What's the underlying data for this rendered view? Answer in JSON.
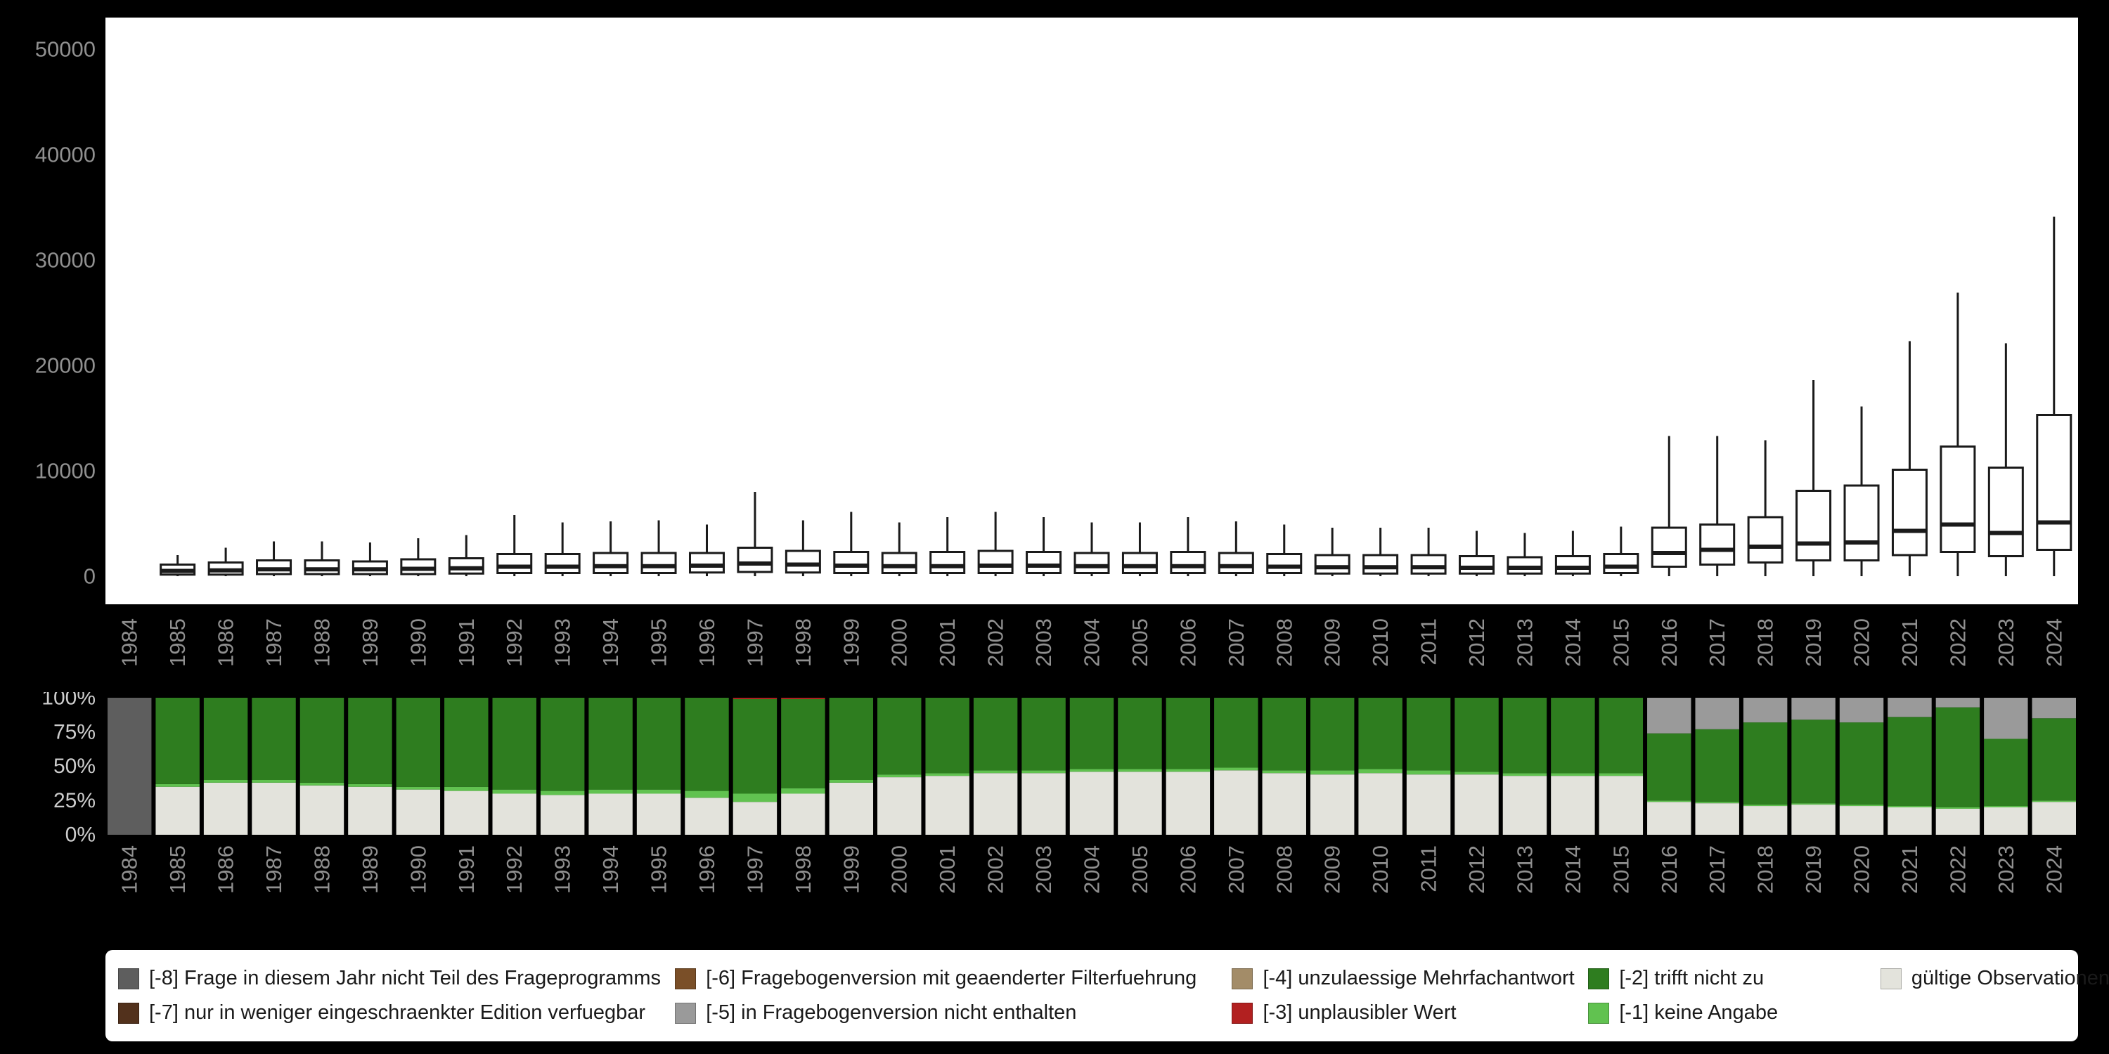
{
  "colors": {
    "background": "#000000",
    "plot_background": "#ffffff",
    "box_stroke": "#1a1a1a",
    "axis_text": "#909090",
    "percent_axis_text": "#cccccc",
    "legend_background": "#ffffff",
    "legend_text": "#1a1a1a",
    "categories": {
      "minus8": "#5e5e5e",
      "minus7": "#52311c",
      "minus6": "#7a4f28",
      "minus5": "#9a9a9a",
      "minus4": "#a38c68",
      "minus3": "#b22020",
      "minus2": "#2e7d1f",
      "minus1": "#61c250",
      "valid": "#e3e3dc"
    }
  },
  "chart_data": [
    {
      "type": "boxplot",
      "title": "",
      "xlabel": "",
      "ylabel": "",
      "ylim": [
        0,
        50000
      ],
      "grid": false,
      "yticks": [
        0,
        10000,
        20000,
        30000,
        40000,
        50000
      ],
      "categories": [
        "1984",
        "1985",
        "1986",
        "1987",
        "1988",
        "1989",
        "1990",
        "1991",
        "1992",
        "1993",
        "1994",
        "1995",
        "1996",
        "1997",
        "1998",
        "1999",
        "2000",
        "2001",
        "2002",
        "2003",
        "2004",
        "2005",
        "2006",
        "2007",
        "2008",
        "2009",
        "2010",
        "2011",
        "2012",
        "2013",
        "2014",
        "2015",
        "2016",
        "2017",
        "2018",
        "2019",
        "2020",
        "2021",
        "2022",
        "2023",
        "2024"
      ],
      "note": "no box drawn for 1984",
      "boxes": {
        "columns": [
          "year",
          "whisker_low",
          "q1",
          "median",
          "q3",
          "whisker_high"
        ],
        "rows": [
          [
            1985,
            0,
            150,
            500,
            1100,
            2000
          ],
          [
            1986,
            0,
            150,
            550,
            1300,
            2700
          ],
          [
            1987,
            0,
            200,
            650,
            1500,
            3300
          ],
          [
            1988,
            0,
            200,
            650,
            1500,
            3300
          ],
          [
            1989,
            0,
            200,
            650,
            1400,
            3200
          ],
          [
            1990,
            0,
            200,
            700,
            1600,
            3600
          ],
          [
            1991,
            0,
            250,
            750,
            1700,
            3900
          ],
          [
            1992,
            0,
            300,
            900,
            2100,
            5800
          ],
          [
            1993,
            0,
            300,
            900,
            2100,
            5100
          ],
          [
            1994,
            0,
            300,
            950,
            2200,
            5200
          ],
          [
            1995,
            0,
            300,
            950,
            2200,
            5300
          ],
          [
            1996,
            0,
            350,
            1000,
            2200,
            4900
          ],
          [
            1997,
            0,
            400,
            1200,
            2700,
            8000
          ],
          [
            1998,
            0,
            350,
            1100,
            2400,
            5300
          ],
          [
            1999,
            0,
            300,
            1000,
            2300,
            6100
          ],
          [
            2000,
            0,
            300,
            950,
            2200,
            5100
          ],
          [
            2001,
            0,
            300,
            950,
            2300,
            5600
          ],
          [
            2002,
            0,
            300,
            1000,
            2400,
            6100
          ],
          [
            2003,
            0,
            300,
            1000,
            2300,
            5600
          ],
          [
            2004,
            0,
            300,
            950,
            2200,
            5100
          ],
          [
            2005,
            0,
            300,
            950,
            2200,
            5100
          ],
          [
            2006,
            0,
            300,
            950,
            2300,
            5600
          ],
          [
            2007,
            0,
            300,
            950,
            2200,
            5200
          ],
          [
            2008,
            0,
            300,
            900,
            2100,
            4900
          ],
          [
            2009,
            0,
            250,
            850,
            2000,
            4600
          ],
          [
            2010,
            0,
            250,
            850,
            2000,
            4600
          ],
          [
            2011,
            0,
            250,
            850,
            2000,
            4600
          ],
          [
            2012,
            0,
            250,
            800,
            1900,
            4300
          ],
          [
            2013,
            0,
            250,
            800,
            1800,
            4100
          ],
          [
            2014,
            0,
            250,
            800,
            1900,
            4300
          ],
          [
            2015,
            0,
            300,
            900,
            2100,
            4700
          ],
          [
            2016,
            0,
            900,
            2200,
            4600,
            13300
          ],
          [
            2017,
            0,
            1100,
            2500,
            4900,
            13300
          ],
          [
            2018,
            0,
            1300,
            2800,
            5600,
            12900
          ],
          [
            2019,
            0,
            1500,
            3100,
            8100,
            18600
          ],
          [
            2020,
            0,
            1500,
            3200,
            8600,
            16100
          ],
          [
            2021,
            0,
            2000,
            4300,
            10100,
            22300
          ],
          [
            2022,
            0,
            2300,
            4900,
            12300,
            26900
          ],
          [
            2023,
            0,
            1900,
            4100,
            10300,
            22100
          ],
          [
            2024,
            0,
            2500,
            5100,
            15300,
            34100
          ]
        ]
      }
    },
    {
      "type": "bar",
      "stacked_percent": true,
      "title": "",
      "xlabel": "",
      "ylabel": "",
      "ylim": [
        0,
        100
      ],
      "yticks": [
        100,
        75,
        50,
        25,
        0
      ],
      "ytick_labels": [
        "100%",
        "75%",
        "50%",
        "25%",
        "0%"
      ],
      "categories": [
        "1984",
        "1985",
        "1986",
        "1987",
        "1988",
        "1989",
        "1990",
        "1991",
        "1992",
        "1993",
        "1994",
        "1995",
        "1996",
        "1997",
        "1998",
        "1999",
        "2000",
        "2001",
        "2002",
        "2003",
        "2004",
        "2005",
        "2006",
        "2007",
        "2008",
        "2009",
        "2010",
        "2011",
        "2012",
        "2013",
        "2014",
        "2015",
        "2016",
        "2017",
        "2018",
        "2019",
        "2020",
        "2021",
        "2022",
        "2023",
        "2024"
      ],
      "series": [
        {
          "key": "valid",
          "name": "gültige Observationen",
          "color": "#e3e3dc",
          "values": [
            0,
            35,
            38,
            38,
            36,
            35,
            33,
            32,
            30,
            29,
            30,
            30,
            27,
            24,
            30,
            38,
            42,
            43,
            45,
            45,
            46,
            46,
            46,
            47,
            45,
            44,
            45,
            44,
            44,
            43,
            43,
            43,
            24,
            23,
            21,
            22,
            21,
            20,
            19,
            20,
            24
          ]
        },
        {
          "key": "minus1",
          "name": "[-1] keine Angabe",
          "color": "#61c250",
          "values": [
            0,
            2,
            2,
            2,
            2,
            2,
            2,
            3,
            3,
            3,
            3,
            3,
            5,
            6,
            4,
            2,
            2,
            2,
            2,
            2,
            2,
            2,
            2,
            2,
            2,
            3,
            3,
            3,
            2,
            2,
            2,
            2,
            1,
            1,
            1,
            1,
            1,
            1,
            1,
            1,
            1
          ]
        },
        {
          "key": "minus2",
          "name": "[-2] trifft nicht zu",
          "color": "#2e7d1f",
          "values": [
            0,
            63,
            60,
            60,
            62,
            63,
            65,
            65,
            67,
            68,
            67,
            67,
            68,
            69,
            65,
            60,
            56,
            55,
            53,
            53,
            52,
            52,
            52,
            51,
            53,
            53,
            52,
            53,
            54,
            55,
            55,
            55,
            49,
            53,
            60,
            61,
            60,
            65,
            73,
            49,
            60
          ]
        },
        {
          "key": "minus3",
          "name": "[-3] unplausibler Wert",
          "color": "#b22020",
          "values": [
            0,
            0,
            0,
            0,
            0,
            0,
            0,
            0,
            0,
            0,
            0,
            0,
            0,
            1,
            1,
            0,
            0,
            0,
            0,
            0,
            0,
            0,
            0,
            0,
            0,
            0,
            0,
            0,
            0,
            0,
            0,
            0,
            0,
            0,
            0,
            0,
            0,
            0,
            0,
            0,
            0
          ]
        },
        {
          "key": "minus5",
          "name": "[-5] in Fragebogenversion nicht enthalten",
          "color": "#9a9a9a",
          "values": [
            0,
            0,
            0,
            0,
            0,
            0,
            0,
            0,
            0,
            0,
            0,
            0,
            0,
            0,
            0,
            0,
            0,
            0,
            0,
            0,
            0,
            0,
            0,
            0,
            0,
            0,
            0,
            0,
            0,
            0,
            0,
            0,
            26,
            23,
            18,
            16,
            18,
            14,
            7,
            30,
            15
          ]
        },
        {
          "key": "minus8",
          "name": "[-8] Frage in diesem Jahr nicht Teil des Frageprogramms",
          "color": "#5e5e5e",
          "values": [
            100,
            0,
            0,
            0,
            0,
            0,
            0,
            0,
            0,
            0,
            0,
            0,
            0,
            0,
            0,
            0,
            0,
            0,
            0,
            0,
            0,
            0,
            0,
            0,
            0,
            0,
            0,
            0,
            0,
            0,
            0,
            0,
            0,
            0,
            0,
            0,
            0,
            0,
            0,
            0,
            0
          ]
        }
      ]
    }
  ],
  "legend": {
    "items": [
      {
        "key": "minus8",
        "label": "[-8] Frage in diesem Jahr nicht Teil des Frageprogramms",
        "color": "#5e5e5e"
      },
      {
        "key": "minus6",
        "label": "[-6] Fragebogenversion mit geaenderter Filterfuehrung",
        "color": "#7a4f28"
      },
      {
        "key": "minus4",
        "label": "[-4] unzulaessige Mehrfachantwort",
        "color": "#a38c68"
      },
      {
        "key": "minus2",
        "label": "[-2] trifft nicht zu",
        "color": "#2e7d1f"
      },
      {
        "key": "valid",
        "label": "gültige Observationen",
        "color": "#e3e3dc"
      },
      {
        "key": "minus7",
        "label": "[-7] nur in weniger eingeschraenkter Edition verfuegbar",
        "color": "#52311c"
      },
      {
        "key": "minus5",
        "label": "[-5] in Fragebogenversion nicht enthalten",
        "color": "#9a9a9a"
      },
      {
        "key": "minus3",
        "label": "[-3] unplausibler Wert",
        "color": "#b22020"
      },
      {
        "key": "minus1",
        "label": "[-1] keine Angabe",
        "color": "#61c250"
      }
    ]
  }
}
